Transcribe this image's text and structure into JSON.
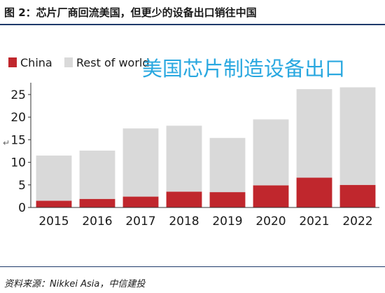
{
  "header": {
    "figure_title": "图 2：芯片厂商回流美国，但更少的设备出口销往中国"
  },
  "footer": {
    "source": "资料来源：Nikkei Asia，中信建投"
  },
  "chart_data": {
    "type": "bar",
    "stacked": true,
    "title": "美国芯片制造设备出口",
    "categories": [
      "2015",
      "2016",
      "2017",
      "2018",
      "2019",
      "2020",
      "2021",
      "2022"
    ],
    "series": [
      {
        "name": "China",
        "values": [
          1.5,
          1.9,
          2.4,
          3.5,
          3.4,
          4.9,
          6.6,
          5.0
        ],
        "color": "#c0272d"
      },
      {
        "name": "Rest of world",
        "values": [
          10.0,
          10.7,
          15.1,
          14.6,
          12.0,
          14.6,
          19.6,
          21.6
        ],
        "color": "#d9d9d9"
      }
    ],
    "ylim": [
      0,
      27
    ],
    "yticks": [
      0,
      5,
      10,
      15,
      20,
      25
    ],
    "grid": false,
    "legend_placement": "top-left",
    "title_color": "#2aa8e0"
  }
}
